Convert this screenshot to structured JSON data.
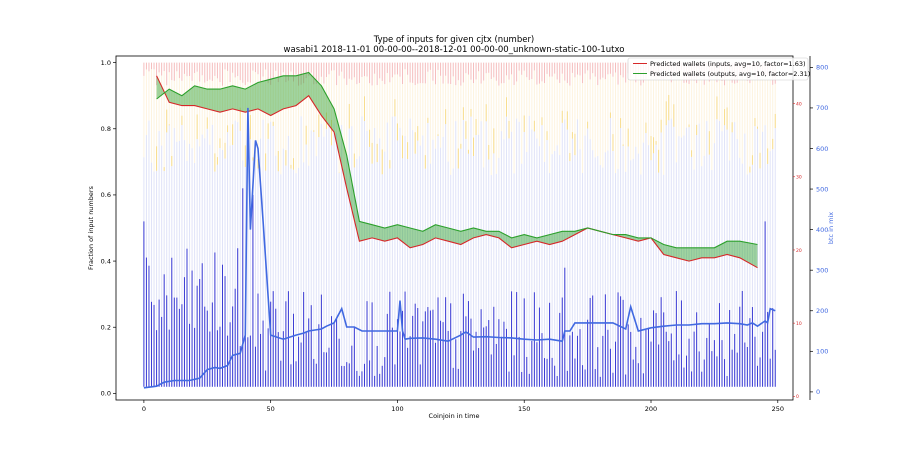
{
  "chart_data": {
    "type": "bar",
    "title": "Type of inputs for given cjtx (number)",
    "subtitle": "wasabi1 2018-11-01 00-00-00--2018-12-01 00-00-00_unknown-static-100-1utxo",
    "xlabel": "Coinjoin in time",
    "ylabel": "Fraction of input numbers",
    "ylabel_right": "btc in mix",
    "xlim": [
      -11,
      256
    ],
    "ylim": [
      -0.02,
      1.02
    ],
    "ylim_right": [
      -20,
      828
    ],
    "ylim_right_inner": [
      -0.5,
      46.5
    ],
    "x_ticks": [
      0,
      50,
      100,
      150,
      200,
      250
    ],
    "y_ticks": [
      0.0,
      0.2,
      0.4,
      0.6,
      0.8,
      1.0
    ],
    "y_ticks_right": [
      0,
      100,
      200,
      300,
      400,
      500,
      600,
      700,
      800
    ],
    "y_ticks_right_inner": [
      0,
      10,
      20,
      30,
      40
    ],
    "grid": false,
    "legend_placement": "top-right",
    "series": [
      {
        "name": "Predicted wallets (inputs, avg=10, factor=1.63)",
        "color": "#d62728",
        "x": [
          5,
          10,
          15,
          20,
          25,
          30,
          35,
          40,
          45,
          50,
          55,
          60,
          65,
          70,
          75,
          80,
          85,
          90,
          95,
          100,
          105,
          110,
          115,
          120,
          125,
          130,
          135,
          140,
          145,
          150,
          155,
          160,
          165,
          170,
          175,
          180,
          185,
          190,
          195,
          200,
          205,
          210,
          215,
          220,
          225,
          230,
          235,
          242
        ],
        "values": [
          0.96,
          0.88,
          0.87,
          0.87,
          0.86,
          0.85,
          0.86,
          0.85,
          0.86,
          0.84,
          0.86,
          0.87,
          0.9,
          0.84,
          0.79,
          0.62,
          0.46,
          0.47,
          0.46,
          0.47,
          0.44,
          0.45,
          0.47,
          0.46,
          0.45,
          0.47,
          0.48,
          0.47,
          0.44,
          0.45,
          0.46,
          0.45,
          0.46,
          0.48,
          0.5,
          0.49,
          0.48,
          0.47,
          0.46,
          0.47,
          0.42,
          0.41,
          0.4,
          0.41,
          0.41,
          0.42,
          0.41,
          0.38
        ]
      },
      {
        "name": "Predicted wallets (outputs, avg=10, factor=2.31)",
        "color": "#2ca02c",
        "x": [
          5,
          10,
          15,
          20,
          25,
          30,
          35,
          40,
          45,
          50,
          55,
          60,
          65,
          70,
          75,
          80,
          85,
          90,
          95,
          100,
          105,
          110,
          115,
          120,
          125,
          130,
          135,
          140,
          145,
          150,
          155,
          160,
          165,
          170,
          175,
          180,
          185,
          190,
          195,
          200,
          205,
          210,
          215,
          220,
          225,
          230,
          235,
          242
        ],
        "values": [
          0.89,
          0.92,
          0.9,
          0.93,
          0.92,
          0.92,
          0.93,
          0.92,
          0.94,
          0.95,
          0.96,
          0.96,
          0.97,
          0.93,
          0.86,
          0.72,
          0.52,
          0.51,
          0.5,
          0.51,
          0.5,
          0.49,
          0.51,
          0.5,
          0.49,
          0.5,
          0.49,
          0.49,
          0.47,
          0.48,
          0.47,
          0.48,
          0.49,
          0.49,
          0.5,
          0.49,
          0.48,
          0.48,
          0.47,
          0.47,
          0.45,
          0.44,
          0.44,
          0.44,
          0.44,
          0.46,
          0.46,
          0.45
        ]
      },
      {
        "name": "",
        "color": "#4169e1",
        "x": [
          0,
          5,
          8,
          12,
          18,
          22,
          25,
          28,
          30,
          33,
          35,
          38,
          40,
          41,
          42,
          44,
          45,
          47,
          50,
          55,
          60,
          63,
          65,
          70,
          72,
          75,
          78,
          80,
          83,
          86,
          88,
          90,
          95,
          100,
          101,
          102,
          103,
          105,
          110,
          115,
          120,
          125,
          127,
          130,
          135,
          140,
          145,
          150,
          155,
          160,
          165,
          166,
          168,
          170,
          175,
          180,
          185,
          190,
          192,
          195,
          200,
          205,
          210,
          215,
          220,
          225,
          230,
          235,
          238,
          240,
          242,
          245,
          246,
          247,
          249
        ],
        "values": [
          10,
          14,
          24,
          28,
          28,
          34,
          55,
          60,
          58,
          65,
          90,
          95,
          140,
          700,
          400,
          620,
          600,
          420,
          140,
          130,
          140,
          145,
          150,
          155,
          162,
          170,
          205,
          160,
          160,
          150,
          150,
          150,
          150,
          150,
          225,
          150,
          130,
          132,
          133,
          130,
          125,
          140,
          148,
          135,
          136,
          134,
          133,
          130,
          128,
          130,
          125,
          150,
          150,
          170,
          170,
          170,
          170,
          155,
          210,
          150,
          158,
          162,
          165,
          165,
          168,
          168,
          170,
          168,
          165,
          170,
          162,
          175,
          170,
          205,
          200
        ]
      }
    ]
  }
}
